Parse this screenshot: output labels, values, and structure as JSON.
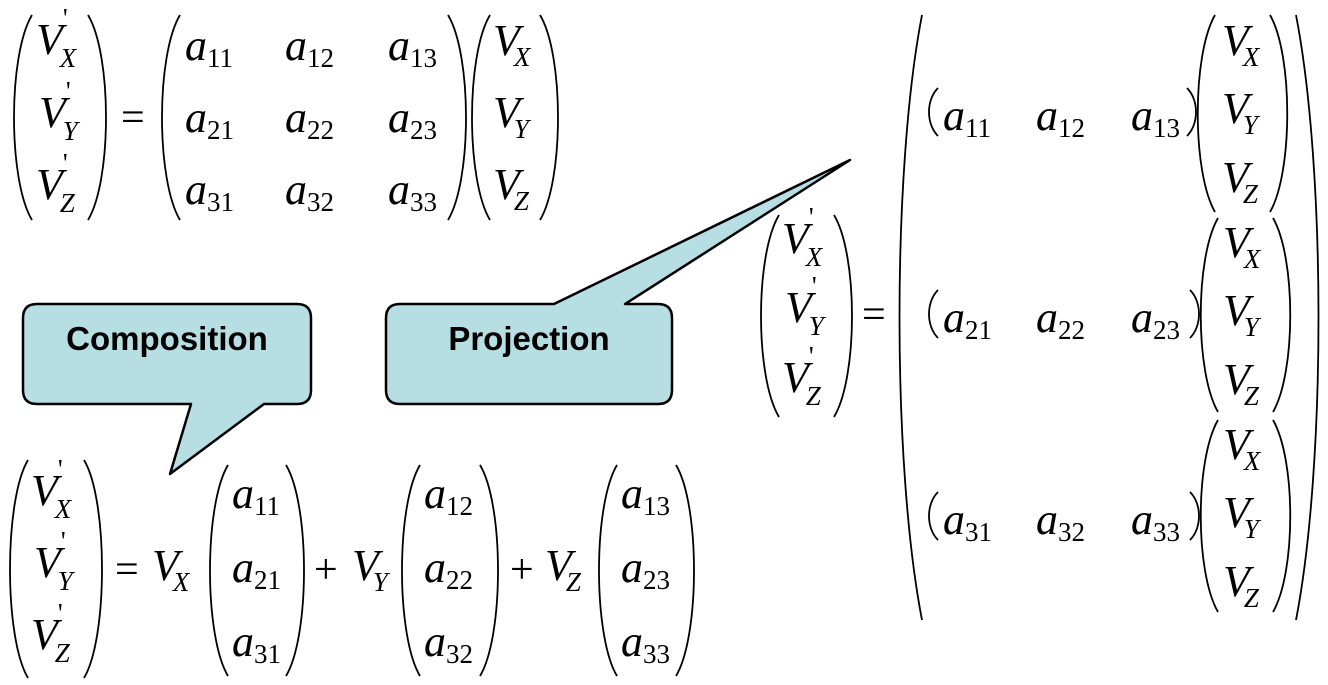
{
  "callouts": {
    "composition": "Composition",
    "projection": "Projection"
  },
  "symbols": {
    "V": "V",
    "a": "a",
    "prime": "'",
    "X": "X",
    "Y": "Y",
    "Z": "Z",
    "equals": "=",
    "plus": "+"
  },
  "matrix": [
    [
      "11",
      "12",
      "13"
    ],
    [
      "21",
      "22",
      "23"
    ],
    [
      "31",
      "32",
      "33"
    ]
  ]
}
